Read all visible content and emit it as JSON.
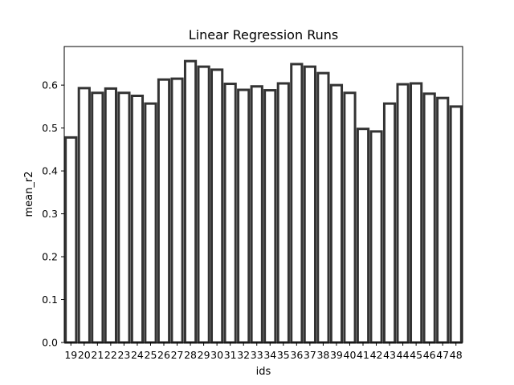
{
  "chart_data": {
    "type": "bar",
    "title": "Linear Regression Runs",
    "xlabel": "ids",
    "ylabel": "mean_r2",
    "ylim": [
      0,
      0.69
    ],
    "yticks": [
      "0.0",
      "0.1",
      "0.2",
      "0.3",
      "0.4",
      "0.5",
      "0.6"
    ],
    "categories": [
      "19",
      "20",
      "21",
      "22",
      "23",
      "24",
      "25",
      "26",
      "27",
      "28",
      "29",
      "30",
      "31",
      "32",
      "33",
      "34",
      "35",
      "36",
      "37",
      "38",
      "39",
      "40",
      "41",
      "42",
      "43",
      "44",
      "45",
      "46",
      "47",
      "48"
    ],
    "values": [
      0.478,
      0.593,
      0.582,
      0.592,
      0.582,
      0.575,
      0.557,
      0.613,
      0.615,
      0.656,
      0.643,
      0.636,
      0.603,
      0.589,
      0.597,
      0.588,
      0.604,
      0.649,
      0.643,
      0.628,
      0.6,
      0.582,
      0.498,
      0.492,
      0.557,
      0.602,
      0.604,
      0.58,
      0.57,
      0.55
    ],
    "bar_fill": "#ffffff",
    "bar_edge": "#333333",
    "grid": false
  }
}
